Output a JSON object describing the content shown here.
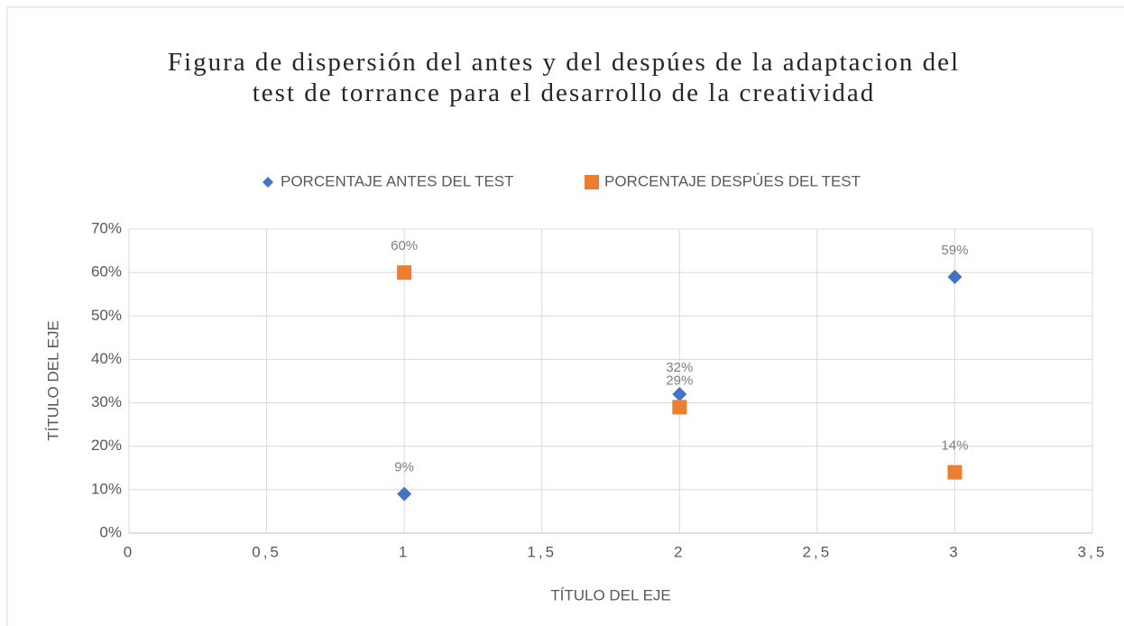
{
  "chart_data": {
    "type": "scatter",
    "title": "Figura de dispersión del antes y del despúes de la adaptacion del test de torrance para el desarrollo de la creatividad",
    "x_label": "TÍTULO DEL EJE",
    "y_label": "TÍTULO DEL EJE",
    "x": [
      1,
      2,
      3
    ],
    "series": [
      {
        "name": "PORCENTAJE ANTES DEL TEST",
        "color": "#4472c4",
        "marker": "diamond",
        "values": [
          9,
          32,
          59
        ],
        "value_labels": [
          "9%",
          "32%",
          "59%"
        ]
      },
      {
        "name": "PORCENTAJE DESPÚES DEL TEST",
        "color": "#ed7d31",
        "marker": "square",
        "values": [
          60,
          29,
          14
        ],
        "value_labels": [
          "60%",
          "29%",
          "14%"
        ]
      }
    ],
    "xlim": [
      0,
      3.5
    ],
    "xticks": [
      0,
      {
        "value": 0.5,
        "label": "0,5"
      },
      1,
      {
        "value": 1.5,
        "label": "1,5"
      },
      2,
      {
        "value": 2.5,
        "label": "2,5"
      },
      3,
      {
        "value": 3.5,
        "label": "3,5"
      }
    ],
    "ylim": [
      0,
      70
    ],
    "yticks": [
      {
        "value": 0,
        "label": "0%"
      },
      {
        "value": 10,
        "label": "10%"
      },
      {
        "value": 20,
        "label": "20%"
      },
      {
        "value": 30,
        "label": "30%"
      },
      {
        "value": 40,
        "label": "40%"
      },
      {
        "value": 50,
        "label": "50%"
      },
      {
        "value": 60,
        "label": "60%"
      },
      {
        "value": 70,
        "label": "70%"
      }
    ],
    "grid": true,
    "legend": "top"
  }
}
